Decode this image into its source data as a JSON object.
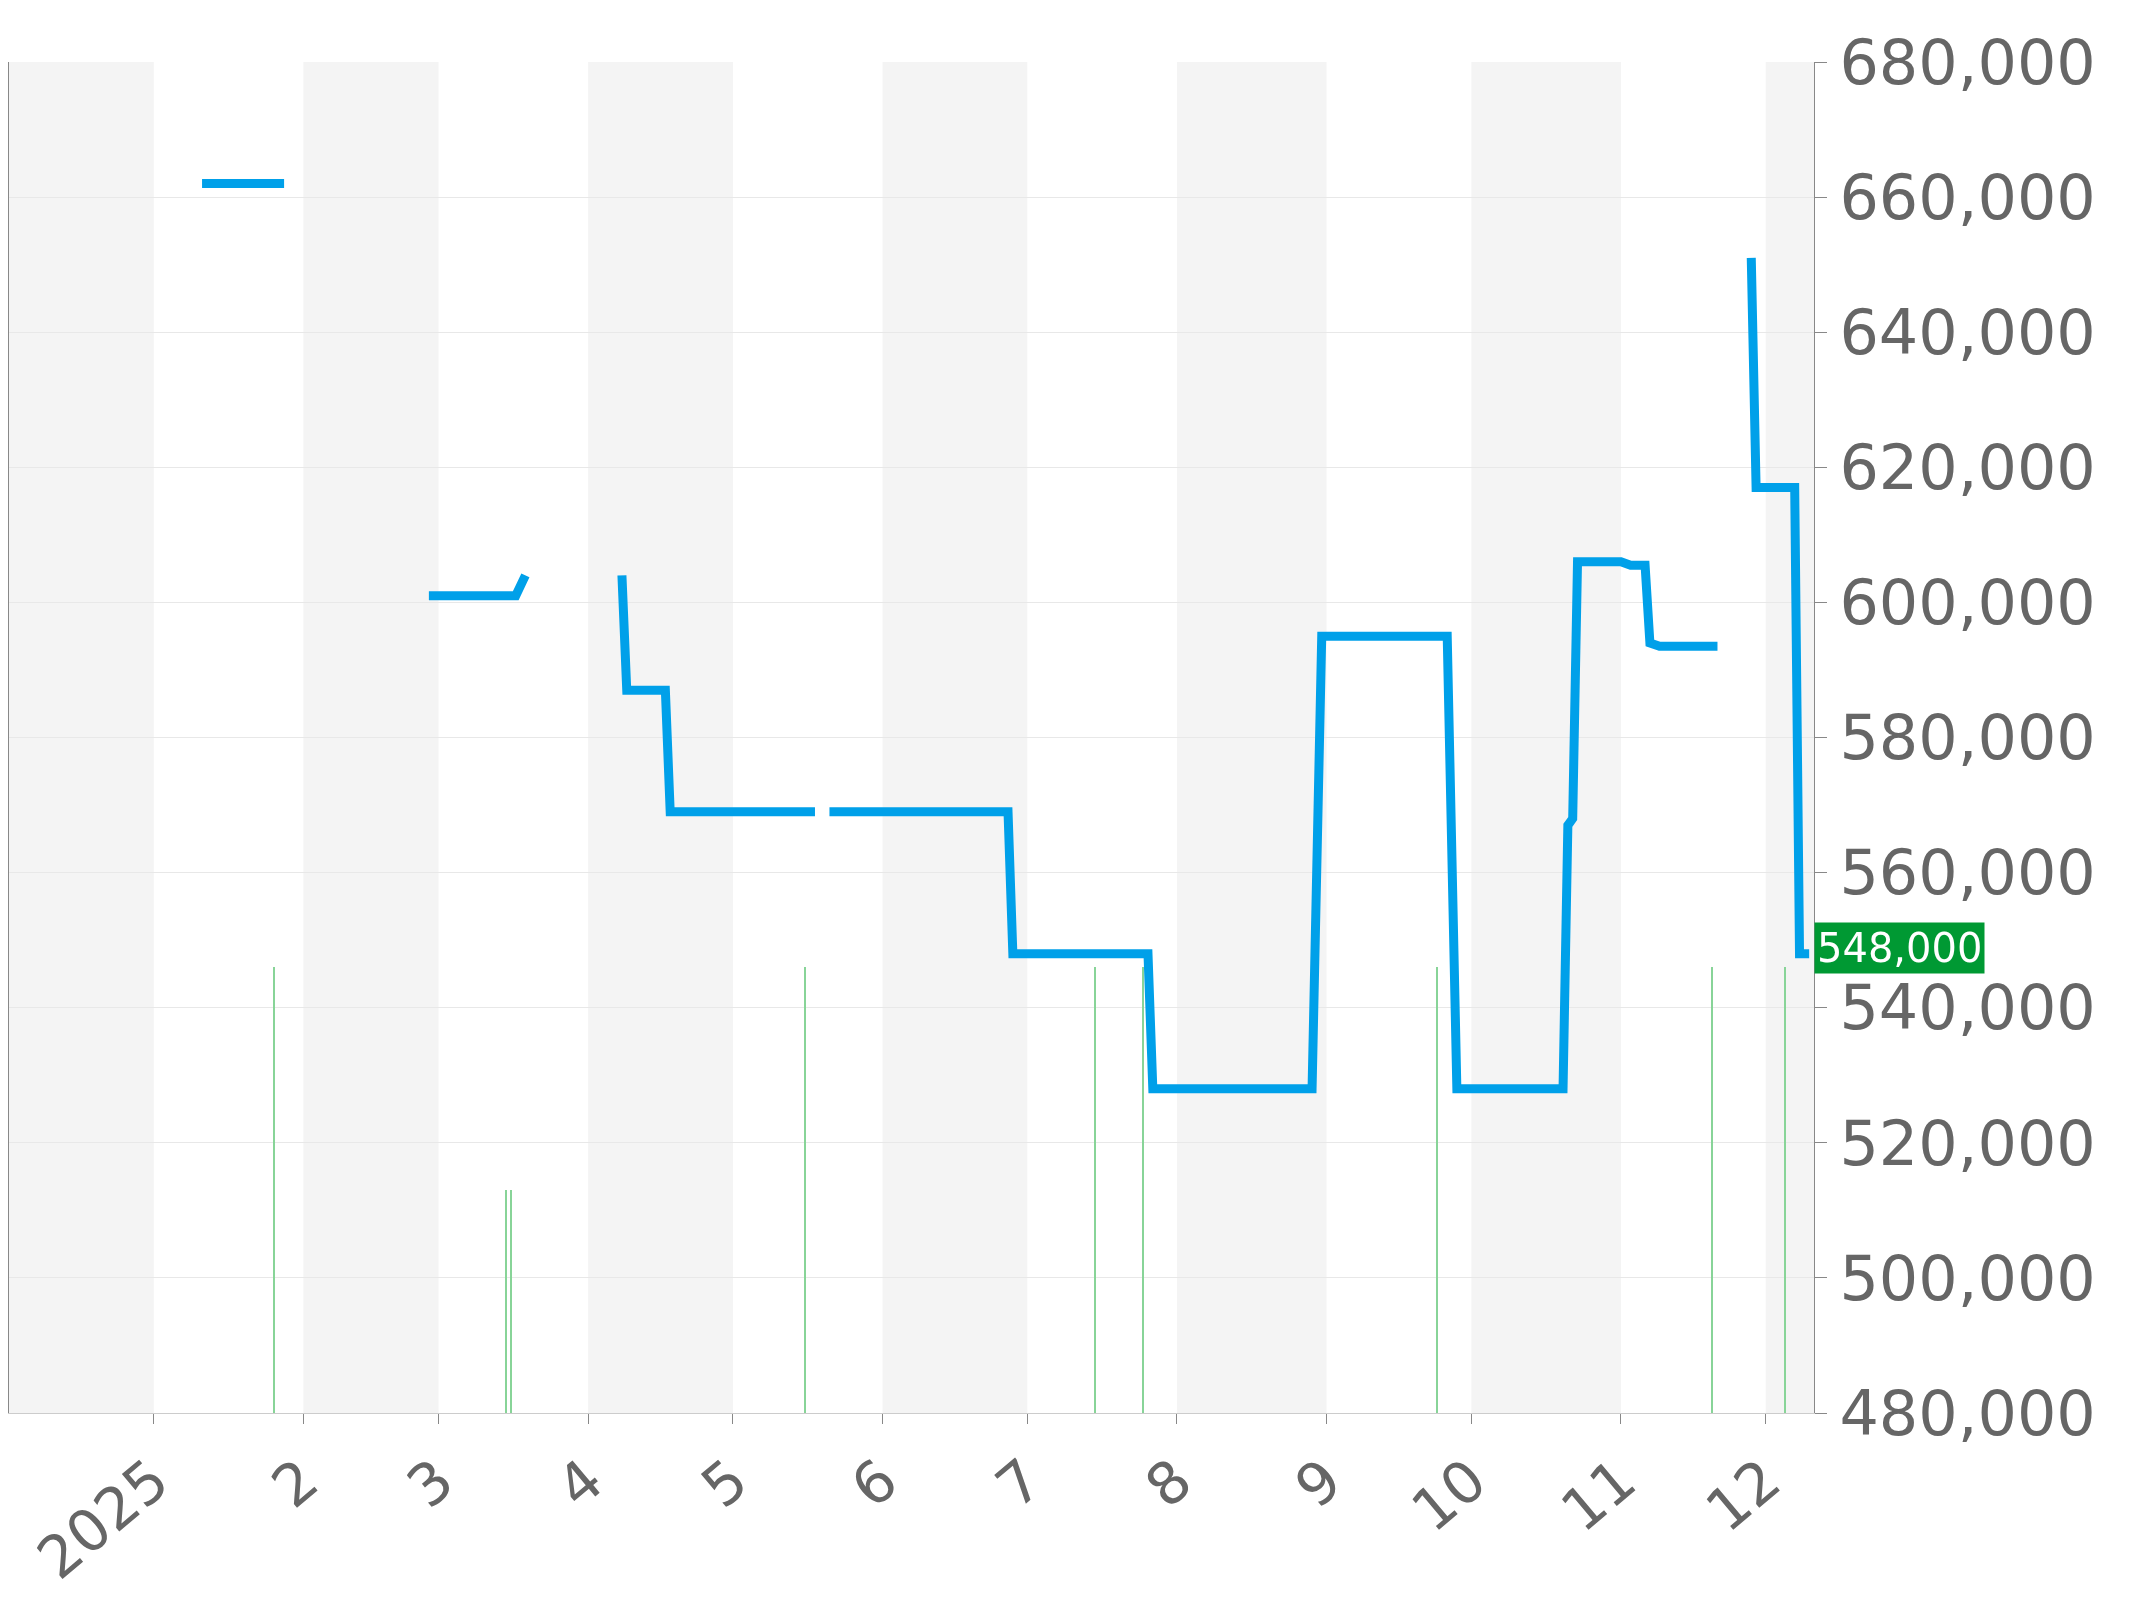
{
  "chart_data": {
    "type": "line",
    "xlim": [
      "2024-12-02",
      "2025-12-11"
    ],
    "xticks": [
      {
        "value": "2025-01-01",
        "label": "2025"
      },
      {
        "value": "2025-02-01",
        "label": "2"
      },
      {
        "value": "2025-03-01",
        "label": "3"
      },
      {
        "value": "2025-04-01",
        "label": "4"
      },
      {
        "value": "2025-05-01",
        "label": "5"
      },
      {
        "value": "2025-06-01",
        "label": "6"
      },
      {
        "value": "2025-07-01",
        "label": "7"
      },
      {
        "value": "2025-08-01",
        "label": "8"
      },
      {
        "value": "2025-09-01",
        "label": "9"
      },
      {
        "value": "2025-10-01",
        "label": "10"
      },
      {
        "value": "2025-11-01",
        "label": "11"
      },
      {
        "value": "2025-12-01",
        "label": "12"
      }
    ],
    "ylim": [
      480000,
      680000
    ],
    "yticks": [
      {
        "value": 480000,
        "label": "480,000"
      },
      {
        "value": 500000,
        "label": "500,000"
      },
      {
        "value": 520000,
        "label": "520,000"
      },
      {
        "value": 540000,
        "label": "540,000"
      },
      {
        "value": 560000,
        "label": "560,000"
      },
      {
        "value": 580000,
        "label": "580,000"
      },
      {
        "value": 600000,
        "label": "600,000"
      },
      {
        "value": 620000,
        "label": "620,000"
      },
      {
        "value": 640000,
        "label": "640,000"
      },
      {
        "value": 660000,
        "label": "660,000"
      },
      {
        "value": 680000,
        "label": "680,000"
      }
    ],
    "grid": "y",
    "marker": "none",
    "line_style": "solid",
    "bands": [
      {
        "axis": "x",
        "from": "2024-12-02",
        "to": "2025-01-01",
        "color": "#f4f4f4"
      },
      {
        "axis": "x",
        "from": "2025-02-01",
        "to": "2025-03-01",
        "color": "#f4f4f4"
      },
      {
        "axis": "x",
        "from": "2025-04-01",
        "to": "2025-05-01",
        "color": "#f4f4f4"
      },
      {
        "axis": "x",
        "from": "2025-06-01",
        "to": "2025-07-01",
        "color": "#f4f4f4"
      },
      {
        "axis": "x",
        "from": "2025-08-01",
        "to": "2025-09-01",
        "color": "#f4f4f4"
      },
      {
        "axis": "x",
        "from": "2025-10-01",
        "to": "2025-11-01",
        "color": "#f4f4f4"
      },
      {
        "axis": "x",
        "from": "2025-12-01",
        "to": "2025-12-11",
        "color": "#f4f4f4"
      }
    ],
    "annotations": [
      "548,000"
    ],
    "series": [
      {
        "type": "bar",
        "color": "#88d498",
        "x": [
          "2025-01-26",
          "2025-03-15",
          "2025-03-16",
          "2025-05-16",
          "2025-07-15",
          "2025-07-25",
          "2025-09-24",
          "2025-10-20",
          "2025-11-20",
          "2025-12-05"
        ],
        "values": [
          546000,
          513000,
          513000,
          546000,
          546000,
          546000,
          546000,
          null,
          546000,
          546000
        ]
      },
      {
        "color": "#00a0e9",
        "x": [
          "2025-01-11",
          "2025-01-28",
          "2025-02-10",
          "2025-02-27",
          "2025-03-17",
          "2025-03-19",
          "2025-03-30",
          "2025-04-08",
          "2025-04-09",
          "2025-04-17",
          "2025-04-18",
          "2025-05-18",
          "2025-05-20",
          "2025-05-21",
          "2025-06-27",
          "2025-06-28",
          "2025-07-26",
          "2025-07-27",
          "2025-08-29",
          "2025-08-31",
          "2025-09-26",
          "2025-09-28",
          "2025-10-20",
          "2025-10-21",
          "2025-10-22",
          "2025-10-23",
          "2025-11-01",
          "2025-11-03",
          "2025-11-06",
          "2025-11-07",
          "2025-11-09",
          "2025-11-21",
          "2025-11-25",
          "2025-11-28",
          "2025-11-29",
          "2025-12-07",
          "2025-12-08",
          "2025-12-10"
        ],
        "values": [
          662000,
          662000,
          null,
          601000,
          601000,
          604000,
          null,
          604000,
          587000,
          587000,
          569000,
          569000,
          null,
          569000,
          569000,
          548000,
          548000,
          528000,
          528000,
          595000,
          595000,
          528000,
          528000,
          567000,
          568000,
          606000,
          606000,
          605500,
          605500,
          594000,
          593500,
          593500,
          null,
          651000,
          617000,
          617000,
          548000,
          548000
        ]
      }
    ]
  }
}
